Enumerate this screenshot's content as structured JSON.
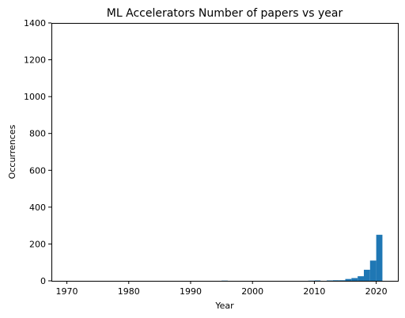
{
  "chart_data": {
    "type": "bar",
    "title": "ML Accelerators Number of papers vs year",
    "xlabel": "Year",
    "ylabel": "Occurrences",
    "xlim": [
      1967.5,
      2023.5
    ],
    "ylim": [
      0,
      1400
    ],
    "xticks": [
      1970,
      1980,
      1990,
      2000,
      2010,
      2020
    ],
    "yticks": [
      0,
      200,
      400,
      600,
      800,
      1000,
      1200,
      1400
    ],
    "grid": false,
    "bar_color": "#1f77b4",
    "bins": [
      {
        "start": 1995,
        "end": 1996,
        "value": 1
      },
      {
        "start": 2009,
        "end": 2010,
        "value": 1
      },
      {
        "start": 2010,
        "end": 2011,
        "value": 2
      },
      {
        "start": 2012,
        "end": 2013,
        "value": 2
      },
      {
        "start": 2013,
        "end": 2014,
        "value": 3
      },
      {
        "start": 2014,
        "end": 2015,
        "value": 3
      },
      {
        "start": 2015,
        "end": 2016,
        "value": 10
      },
      {
        "start": 2016,
        "end": 2017,
        "value": 15
      },
      {
        "start": 2017,
        "end": 2018,
        "value": 25
      },
      {
        "start": 2018,
        "end": 2019,
        "value": 60
      },
      {
        "start": 2019,
        "end": 2020,
        "value": 110
      },
      {
        "start": 2020,
        "end": 2021,
        "value": 250
      }
    ]
  }
}
